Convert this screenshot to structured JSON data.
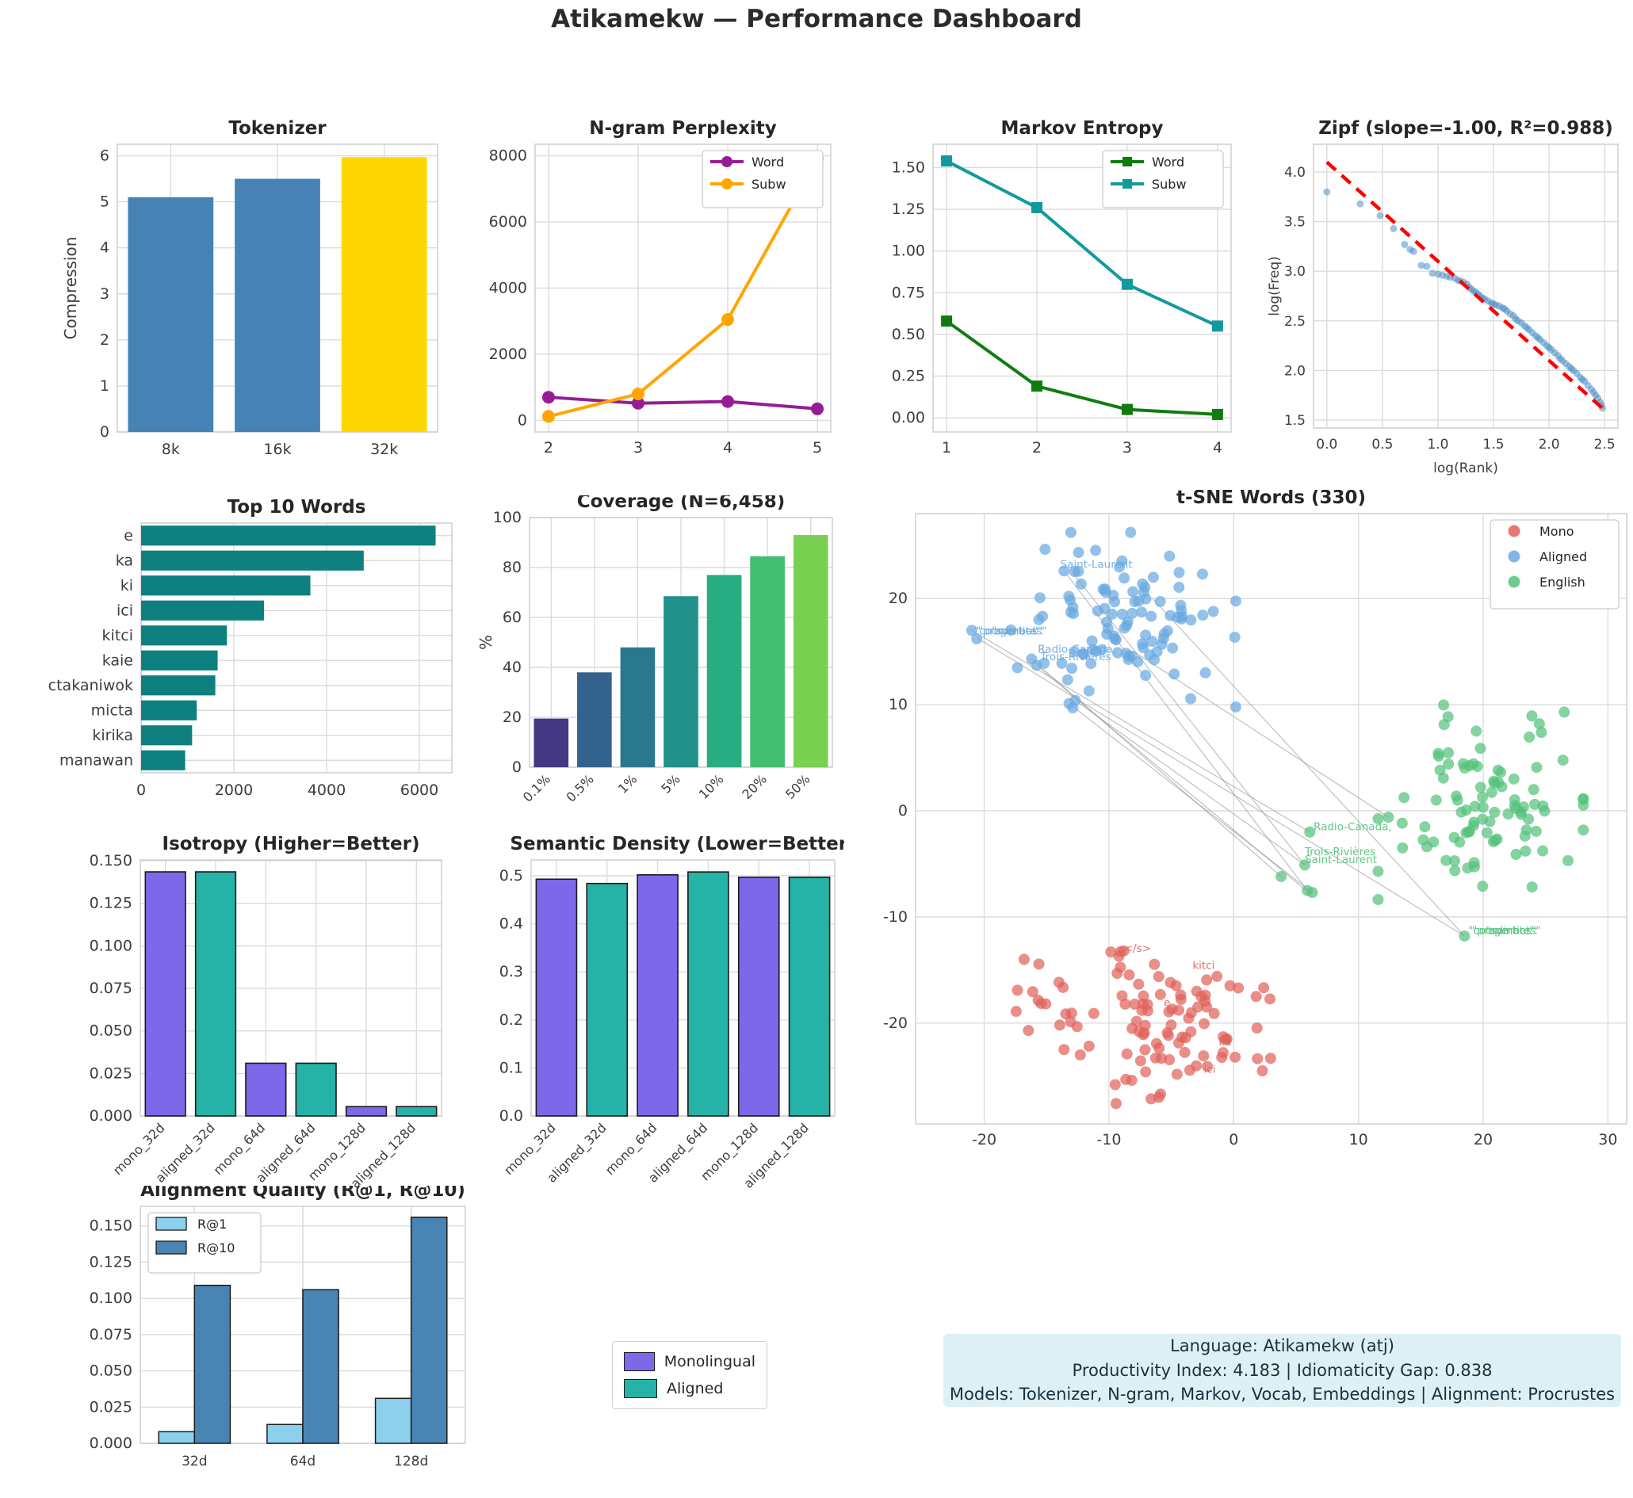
{
  "page_title": "Atikamekw — Performance Dashboard",
  "legend_box": {
    "items": [
      {
        "label": "Monolingual",
        "color": "#7d68ea"
      },
      {
        "label": "Aligned",
        "color": "#25b3a7"
      }
    ]
  },
  "info_box": {
    "bg": "#dff0f5",
    "lines": [
      "Language: Atikamekw (atj)",
      "Productivity Index: 4.183  |  Idiomaticity Gap: 0.838",
      "Models: Tokenizer, N-gram, Markov, Vocab, Embeddings  |  Alignment: Procrustes"
    ]
  },
  "chart_data": [
    {
      "id": "tokenizer",
      "type": "bar",
      "title": "Tokenizer",
      "ylabel": "Compression",
      "categories": [
        "8k",
        "16k",
        "32k"
      ],
      "values": [
        5.1,
        5.5,
        5.97
      ],
      "colors": [
        "#4682B4",
        "#4682B4",
        "#FFD700"
      ],
      "ylim": [
        0,
        6.25
      ],
      "yticks": [
        0,
        1,
        2,
        3,
        4,
        5,
        6
      ],
      "ytlabels": [
        "0",
        "1",
        "2",
        "3",
        "4",
        "5",
        "6"
      ],
      "edge": false,
      "rot": false
    },
    {
      "id": "ngram",
      "type": "line",
      "title": "N-gram Perplexity",
      "x": [
        2,
        3,
        4,
        5
      ],
      "xlim": [
        1.85,
        5.15
      ],
      "xticks": [
        2,
        3,
        4,
        5
      ],
      "xtlabels": [
        "2",
        "3",
        "4",
        "5"
      ],
      "ylim": [
        -350,
        8350
      ],
      "yticks": [
        0,
        2000,
        4000,
        6000,
        8000
      ],
      "ytlabels": [
        "0",
        "2000",
        "4000",
        "6000",
        "8000"
      ],
      "series": [
        {
          "name": "Word",
          "color": "#951d95",
          "marker": "circle",
          "values": [
            700,
            520,
            570,
            350
          ]
        },
        {
          "name": "Subw",
          "color": "#FFA500",
          "marker": "circle",
          "values": [
            120,
            800,
            3050,
            7900
          ]
        }
      ],
      "legend": "top-right"
    },
    {
      "id": "markov",
      "type": "line",
      "title": "Markov Entropy",
      "x": [
        1,
        2,
        3,
        4
      ],
      "xlim": [
        0.85,
        4.15
      ],
      "xticks": [
        1,
        2,
        3,
        4
      ],
      "xtlabels": [
        "1",
        "2",
        "3",
        "4"
      ],
      "ylim": [
        -0.085,
        1.64
      ],
      "yticks": [
        0,
        0.25,
        0.5,
        0.75,
        1.0,
        1.25,
        1.5
      ],
      "ytlabels": [
        "0.00",
        "0.25",
        "0.50",
        "0.75",
        "1.00",
        "1.25",
        "1.50"
      ],
      "series": [
        {
          "name": "Word",
          "color": "#107c10",
          "marker": "square",
          "values": [
            0.58,
            0.19,
            0.05,
            0.02
          ]
        },
        {
          "name": "Subw",
          "color": "#12999e",
          "marker": "square",
          "values": [
            1.54,
            1.26,
            0.8,
            0.55
          ]
        }
      ],
      "legend": "top-right"
    },
    {
      "id": "zipf",
      "type": "scatter_fit",
      "title": "Zipf (slope=-1.00, R²=0.988)",
      "xlabel": "log(Rank)",
      "ylabel": "log(Freq)",
      "xlim": [
        -0.12,
        2.62
      ],
      "ylim": [
        1.42,
        4.28
      ],
      "xticks": [
        0,
        0.5,
        1.0,
        1.5,
        2.0,
        2.5
      ],
      "xtlabels": [
        "0.0",
        "0.5",
        "1.0",
        "1.5",
        "2.0",
        "2.5"
      ],
      "yticks": [
        1.5,
        2.0,
        2.5,
        3.0,
        3.5,
        4.0
      ],
      "ytlabels": [
        "1.5",
        "2.0",
        "2.5",
        "3.0",
        "3.5",
        "4.0"
      ],
      "point_color": "#4f8fc4",
      "fit_color": "#ff0000",
      "fit": [
        [
          0,
          4.1
        ],
        [
          2.5,
          1.6
        ]
      ],
      "points": [
        [
          0.0,
          3.8
        ],
        [
          0.3,
          3.68
        ],
        [
          0.48,
          3.56
        ],
        [
          0.6,
          3.43
        ],
        [
          0.7,
          3.27
        ],
        [
          0.75,
          3.22
        ],
        [
          0.78,
          3.2
        ],
        [
          0.85,
          3.06
        ],
        [
          0.9,
          3.05
        ],
        [
          0.95,
          2.98
        ],
        [
          1.0,
          2.97
        ],
        [
          1.04,
          2.96
        ],
        [
          1.08,
          2.95
        ],
        [
          1.11,
          2.94
        ],
        [
          1.15,
          2.93
        ],
        [
          1.18,
          2.91
        ],
        [
          1.2,
          2.9
        ],
        [
          1.23,
          2.89
        ],
        [
          1.26,
          2.87
        ],
        [
          1.28,
          2.84
        ],
        [
          1.3,
          2.82
        ],
        [
          1.32,
          2.8
        ],
        [
          1.34,
          2.79
        ],
        [
          1.36,
          2.77
        ],
        [
          1.38,
          2.75
        ],
        [
          1.4,
          2.73
        ],
        [
          1.42,
          2.72
        ],
        [
          1.45,
          2.7
        ],
        [
          1.48,
          2.68
        ],
        [
          1.5,
          2.67
        ],
        [
          1.52,
          2.66
        ],
        [
          1.55,
          2.65
        ],
        [
          1.58,
          2.63
        ],
        [
          1.6,
          2.62
        ],
        [
          1.62,
          2.6
        ],
        [
          1.65,
          2.57
        ],
        [
          1.68,
          2.55
        ],
        [
          1.7,
          2.52
        ],
        [
          1.72,
          2.5
        ],
        [
          1.75,
          2.48
        ],
        [
          1.78,
          2.45
        ],
        [
          1.8,
          2.43
        ],
        [
          1.82,
          2.41
        ],
        [
          1.85,
          2.38
        ],
        [
          1.88,
          2.35
        ],
        [
          1.9,
          2.33
        ],
        [
          1.92,
          2.31
        ],
        [
          1.95,
          2.28
        ],
        [
          1.98,
          2.25
        ],
        [
          2.0,
          2.23
        ],
        [
          2.02,
          2.21
        ],
        [
          2.05,
          2.18
        ],
        [
          2.08,
          2.15
        ],
        [
          2.1,
          2.12
        ],
        [
          2.12,
          2.1
        ],
        [
          2.15,
          2.07
        ],
        [
          2.18,
          2.04
        ],
        [
          2.2,
          2.02
        ],
        [
          2.22,
          2.0
        ],
        [
          2.25,
          1.97
        ],
        [
          2.28,
          1.93
        ],
        [
          2.3,
          1.91
        ],
        [
          2.32,
          1.89
        ],
        [
          2.35,
          1.85
        ],
        [
          2.38,
          1.81
        ],
        [
          2.4,
          1.78
        ],
        [
          2.42,
          1.75
        ],
        [
          2.44,
          1.72
        ],
        [
          2.46,
          1.68
        ],
        [
          2.47,
          1.65
        ],
        [
          2.48,
          1.62
        ]
      ]
    },
    {
      "id": "top_words",
      "type": "barh",
      "title": "Top 10 Words",
      "categories": [
        "e",
        "ka",
        "ki",
        "ici",
        "kitci",
        "kaie",
        "matcectakaniwok",
        "micta",
        "kirika",
        "manawan"
      ],
      "values": [
        6350,
        4800,
        3650,
        2650,
        1850,
        1650,
        1600,
        1200,
        1100,
        950
      ],
      "color": "#0e8080",
      "xlim": [
        0,
        6700
      ],
      "xticks": [
        0,
        2000,
        4000,
        6000
      ],
      "xtlabels": [
        "0",
        "2000",
        "4000",
        "6000"
      ]
    },
    {
      "id": "coverage",
      "type": "bar",
      "title": "Coverage (N=6,458)",
      "ylabel": "%",
      "categories": [
        "0.1%",
        "0.5%",
        "1%",
        "5%",
        "10%",
        "20%",
        "50%"
      ],
      "values": [
        19.5,
        38,
        48,
        68.5,
        77,
        84.5,
        93
      ],
      "colors": [
        "#453882",
        "#33628d",
        "#2a788e",
        "#21918c",
        "#27ad81",
        "#42be71",
        "#7ad151"
      ],
      "ylim": [
        0,
        100
      ],
      "yticks": [
        0,
        20,
        40,
        60,
        80,
        100
      ],
      "ytlabels": [
        "0",
        "20",
        "40",
        "60",
        "80",
        "100"
      ],
      "edge": false,
      "rot": true
    },
    {
      "id": "tsne",
      "type": "tsne",
      "title": "t-SNE Words (330)",
      "xlim": [
        -25.5,
        31.5
      ],
      "ylim": [
        -29.5,
        28
      ],
      "xticks": [
        -20,
        -10,
        0,
        10,
        20,
        30
      ],
      "xtlabels": [
        "-20",
        "-10",
        "0",
        "10",
        "20",
        "30"
      ],
      "yticks": [
        -20,
        -10,
        0,
        10,
        20
      ],
      "ytlabels": [
        "-20",
        "-10",
        "0",
        "10",
        "20"
      ],
      "line_color": "#8c8c8c",
      "lines": [
        [
          [
            -20.6,
            16.3
          ],
          [
            18.5,
            -11.8
          ]
        ],
        [
          [
            -13.6,
            22.6
          ],
          [
            5.9,
            -7.5
          ]
        ],
        [
          [
            -12.9,
            22.4
          ],
          [
            5.7,
            -5.1
          ]
        ],
        [
          [
            -16.2,
            14.3
          ],
          [
            3.8,
            -6.2
          ]
        ],
        [
          [
            -15.8,
            13.7
          ],
          [
            5.9,
            -7.6
          ]
        ],
        [
          [
            -13.2,
            10.1
          ],
          [
            6.3,
            -7.7
          ]
        ],
        [
          [
            -12.7,
            10.4
          ],
          [
            5.7,
            -5.1
          ]
        ],
        [
          [
            -21.0,
            17.0
          ],
          [
            6.1,
            -2.0
          ]
        ],
        [
          [
            -6.5,
            20.0
          ],
          [
            18.5,
            -11.8
          ]
        ],
        [
          [
            -8.0,
            15.0
          ],
          [
            12.4,
            -0.6
          ]
        ]
      ],
      "clusters": [
        {
          "name": "Mono",
          "color": "#e0625a",
          "seed": 11,
          "center": [
            -4.8,
            -20.3
          ],
          "spread": [
            3.3,
            3.1
          ],
          "count": 85,
          "extra": [
            [
              -16.8,
              -14.0
            ],
            [
              -8.8,
              -13.2
            ],
            [
              -9.2,
              -13.7
            ],
            [
              -13.6,
              -22.5
            ],
            [
              -12.3,
              -23.0
            ],
            [
              2.3,
              -24.5
            ],
            [
              1.8,
              -17.5
            ],
            [
              -9.5,
              -25.8
            ],
            [
              -6.0,
              -27.0
            ]
          ]
        },
        {
          "name": "Mono2",
          "color": "#e0625a",
          "seed": 12,
          "center": [
            -15.5,
            -18.2
          ],
          "spread": [
            1.3,
            1.6
          ],
          "count": 14,
          "extra": [],
          "hide_legend": true
        },
        {
          "name": "Aligned",
          "color": "#6aa9e0",
          "seed": 21,
          "center": [
            -9.0,
            18.0
          ],
          "spread": [
            3.9,
            3.5
          ],
          "count": 100,
          "extra": [
            [
              -21.0,
              17.0
            ],
            [
              -20.6,
              16.2
            ],
            [
              -16.2,
              14.3
            ],
            [
              -15.8,
              13.7
            ],
            [
              -15.2,
              13.9
            ],
            [
              -13.2,
              10.1
            ],
            [
              -12.7,
              10.4
            ],
            [
              -12.9,
              9.7
            ],
            [
              -13.6,
              22.6
            ],
            [
              -2.5,
              22.3
            ]
          ]
        },
        {
          "name": "English",
          "color": "#55c27c",
          "seed": 31,
          "center": [
            19.8,
            0.8
          ],
          "spread": [
            3.5,
            3.9
          ],
          "count": 92,
          "extra": [
            [
              3.8,
              -6.2
            ],
            [
              5.9,
              -7.5
            ],
            [
              6.3,
              -7.7
            ],
            [
              5.7,
              -5.1
            ],
            [
              6.1,
              -2.0
            ],
            [
              18.5,
              -11.8
            ],
            [
              26.5,
              9.3
            ],
            [
              12.4,
              -0.6
            ],
            [
              26.8,
              -4.7
            ],
            [
              24.5,
              8.2
            ]
          ]
        }
      ],
      "legend_entries": [
        {
          "name": "Mono",
          "color": "#e0625a"
        },
        {
          "name": "Aligned",
          "color": "#6aa9e0"
        },
        {
          "name": "English",
          "color": "#55c27c"
        }
      ],
      "labels": [
        {
          "text": "Saint-Laurent",
          "x": -13.9,
          "y": 22.9,
          "color": "#6aa9e0"
        },
        {
          "text": "\"coordinates\"",
          "x": -20.8,
          "y": 16.6,
          "color": "#6aa9e0"
        },
        {
          "text": "\"properties\"",
          "x": -20.5,
          "y": 16.6,
          "color": "#6aa9e0"
        },
        {
          "text": "\"symbol\":",
          "x": -19.4,
          "y": 16.6,
          "color": "#6aa9e0"
        },
        {
          "text": "Radio-Canada,",
          "x": -15.7,
          "y": 14.9,
          "color": "#6aa9e0"
        },
        {
          "text": "Trois-Rivières",
          "x": -15.5,
          "y": 14.2,
          "color": "#6aa9e0"
        },
        {
          "text": "Radio-Canada,",
          "x": 6.4,
          "y": -1.85,
          "color": "#55c27c"
        },
        {
          "text": "Trois-Rivières",
          "x": 5.7,
          "y": -4.2,
          "color": "#55c27c"
        },
        {
          "text": "Saint-Laurent",
          "x": 5.7,
          "y": -4.95,
          "color": "#55c27c"
        },
        {
          "text": "\"coordinates\"",
          "x": 18.8,
          "y": -11.6,
          "color": "#55c27c"
        },
        {
          "text": "\"properties\"",
          "x": 19.1,
          "y": -11.6,
          "color": "#55c27c"
        },
        {
          "text": "\"symbol\":",
          "x": 20.2,
          "y": -11.6,
          "color": "#55c27c"
        },
        {
          "text": "</s>",
          "x": -8.8,
          "y": -13.3,
          "color": "#e0625a"
        },
        {
          "text": "kitci",
          "x": -3.3,
          "y": -14.9,
          "color": "#e0625a"
        },
        {
          "text": "e",
          "x": -5.6,
          "y": -18.4,
          "color": "#e0625a"
        },
        {
          "text": "ka",
          "x": -1.2,
          "y": -22.1,
          "color": "#e0625a"
        },
        {
          "text": "ici",
          "x": -2.4,
          "y": -24.7,
          "color": "#e0625a"
        }
      ]
    },
    {
      "id": "isotropy",
      "type": "bar",
      "title": "Isotropy (Higher=Better)",
      "categories": [
        "mono_32d",
        "aligned_32d",
        "mono_64d",
        "aligned_64d",
        "mono_128d",
        "aligned_128d"
      ],
      "values": [
        0.1435,
        0.1435,
        0.031,
        0.031,
        0.0055,
        0.0055
      ],
      "colors": [
        "#7d68ea",
        "#25b3a7",
        "#7d68ea",
        "#25b3a7",
        "#7d68ea",
        "#25b3a7"
      ],
      "ylim": [
        0,
        0.1505
      ],
      "yticks": [
        0,
        0.025,
        0.05,
        0.075,
        0.1,
        0.125,
        0.15
      ],
      "ytlabels": [
        "0.000",
        "0.025",
        "0.050",
        "0.075",
        "0.100",
        "0.125",
        "0.150"
      ],
      "edge": true,
      "rot": true
    },
    {
      "id": "semantic",
      "type": "bar",
      "title": "Semantic Density (Lower=Better)",
      "categories": [
        "mono_32d",
        "aligned_32d",
        "mono_64d",
        "aligned_64d",
        "mono_128d",
        "aligned_128d"
      ],
      "values": [
        0.493,
        0.484,
        0.502,
        0.508,
        0.497,
        0.497
      ],
      "colors": [
        "#7d68ea",
        "#25b3a7",
        "#7d68ea",
        "#25b3a7",
        "#7d68ea",
        "#25b3a7"
      ],
      "ylim": [
        0,
        0.533
      ],
      "yticks": [
        0,
        0.1,
        0.2,
        0.3,
        0.4,
        0.5
      ],
      "ytlabels": [
        "0.0",
        "0.1",
        "0.2",
        "0.3",
        "0.4",
        "0.5"
      ],
      "edge": true,
      "rot": true
    },
    {
      "id": "alignment",
      "type": "grouped_bar",
      "title": "Alignment Quality (R@1, R@10)",
      "categories": [
        "32d",
        "64d",
        "128d"
      ],
      "series": [
        {
          "name": "R@1",
          "color": "#8dd0ee",
          "values": [
            0.008,
            0.013,
            0.031
          ]
        },
        {
          "name": "R@10",
          "color": "#4985b4",
          "values": [
            0.109,
            0.106,
            0.156
          ]
        }
      ],
      "ylim": [
        0,
        0.1635
      ],
      "yticks": [
        0,
        0.025,
        0.05,
        0.075,
        0.1,
        0.125,
        0.15
      ],
      "ytlabels": [
        "0.000",
        "0.025",
        "0.050",
        "0.075",
        "0.100",
        "0.125",
        "0.150"
      ],
      "legend": "top-left"
    }
  ]
}
